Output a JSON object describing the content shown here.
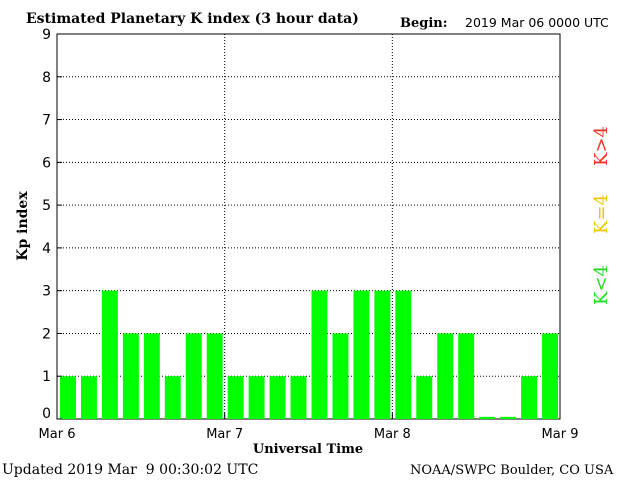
{
  "chart_data": {
    "type": "bar",
    "title": "Estimated Planetary K index (3 hour data)",
    "begin_label": "Begin:",
    "begin_value": "2019 Mar 06 0000 UTC",
    "ylabel": "Kp index",
    "xlabel": "Universal Time",
    "ylim": [
      0,
      9
    ],
    "yticks": [
      "0",
      "1",
      "2",
      "3",
      "4",
      "5",
      "6",
      "7",
      "8",
      "9"
    ],
    "xticks": [
      "Mar 6",
      "Mar 7",
      "Mar 8",
      "Mar 9"
    ],
    "grid": true,
    "values": [
      1,
      1,
      3,
      2,
      2,
      1,
      2,
      2,
      1,
      1,
      1,
      1,
      3,
      2,
      3,
      3,
      3,
      1,
      2,
      2,
      0.05,
      0.05,
      1,
      2
    ],
    "bar_color": "#00ff00",
    "legend": [
      {
        "label": "K<4",
        "color": "#22dd22"
      },
      {
        "label": "K=4",
        "color": "#f0c800"
      },
      {
        "label": "K>4",
        "color": "#ee3322"
      }
    ]
  },
  "footer": {
    "updated": "Updated 2019 Mar  9 00:30:02 UTC",
    "source": "NOAA/SWPC Boulder, CO USA"
  }
}
